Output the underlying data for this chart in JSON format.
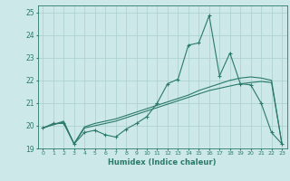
{
  "xlabel": "Humidex (Indice chaleur)",
  "x_values": [
    0,
    1,
    2,
    3,
    4,
    5,
    6,
    7,
    8,
    9,
    10,
    11,
    12,
    13,
    14,
    15,
    16,
    17,
    18,
    19,
    20,
    21,
    22,
    23
  ],
  "line1_y": [
    19.9,
    20.1,
    20.1,
    19.2,
    19.7,
    19.8,
    19.6,
    19.5,
    19.85,
    20.1,
    20.4,
    21.0,
    21.85,
    22.05,
    23.55,
    23.65,
    24.85,
    22.2,
    23.2,
    21.85,
    21.8,
    21.0,
    19.7,
    19.2
  ],
  "line2_y": [
    19.9,
    20.05,
    20.15,
    19.2,
    19.9,
    20.0,
    20.1,
    20.2,
    20.35,
    20.5,
    20.65,
    20.8,
    20.95,
    21.1,
    21.25,
    21.4,
    21.55,
    21.65,
    21.75,
    21.85,
    21.9,
    21.95,
    21.9,
    19.2
  ],
  "line3_y": [
    19.9,
    20.05,
    20.2,
    19.2,
    19.95,
    20.1,
    20.2,
    20.3,
    20.45,
    20.6,
    20.75,
    20.9,
    21.05,
    21.2,
    21.35,
    21.55,
    21.7,
    21.85,
    22.0,
    22.1,
    22.15,
    22.1,
    22.0,
    19.2
  ],
  "line_color": "#2a7a6a",
  "bg_color": "#cde8e8",
  "grid_color": "#aacece",
  "ylim": [
    19.0,
    25.3
  ],
  "xlim": [
    -0.5,
    23.5
  ],
  "yticks": [
    19,
    20,
    21,
    22,
    23,
    24,
    25
  ],
  "xticks": [
    0,
    1,
    2,
    3,
    4,
    5,
    6,
    7,
    8,
    9,
    10,
    11,
    12,
    13,
    14,
    15,
    16,
    17,
    18,
    19,
    20,
    21,
    22,
    23
  ]
}
